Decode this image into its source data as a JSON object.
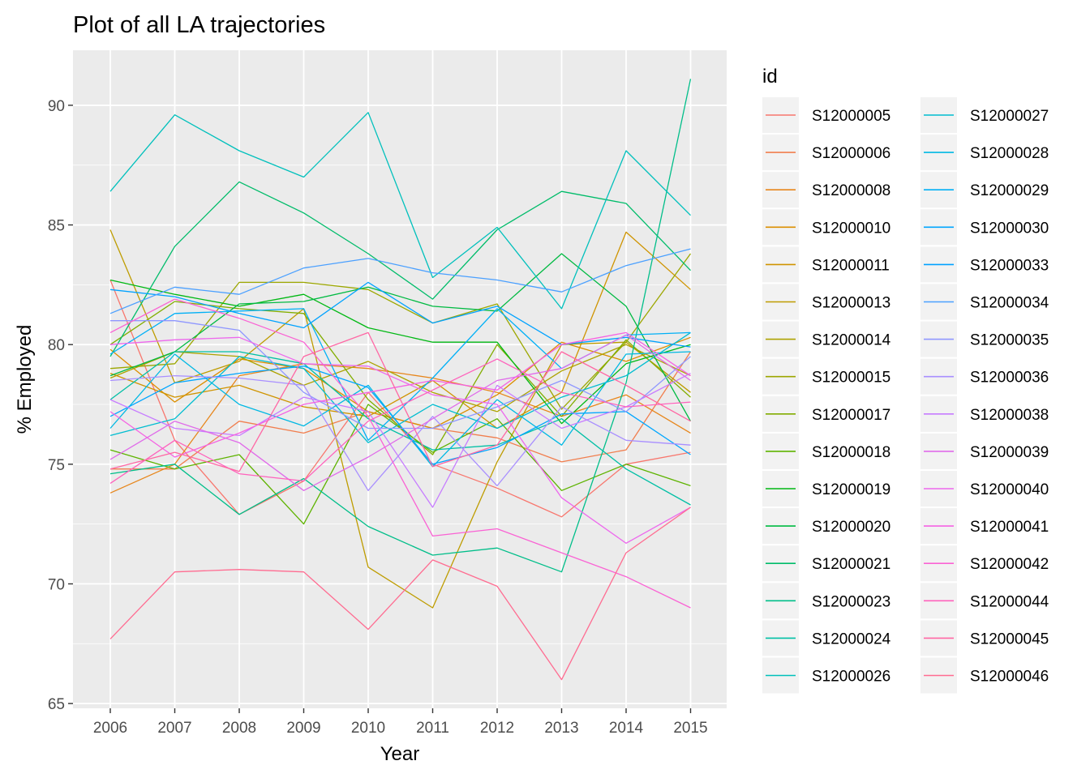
{
  "chart_data": {
    "type": "line",
    "title": "Plot of all LA trajectories",
    "xlabel": "Year",
    "ylabel": "% Employed",
    "x": [
      "2006",
      "2007",
      "2008",
      "2009",
      "2010",
      "2011",
      "2012",
      "2013",
      "2014",
      "2015"
    ],
    "ylim": [
      64.8,
      92.3
    ],
    "yticks": [
      65,
      70,
      75,
      80,
      85,
      90
    ],
    "grid": true,
    "legend_title": "id",
    "legend_position": "right",
    "series": [
      {
        "name": "S12000005",
        "color": "#F8766D",
        "values": [
          82.7,
          76.0,
          72.9,
          74.3,
          78.0,
          75.0,
          74.0,
          72.8,
          75.0,
          75.5
        ]
      },
      {
        "name": "S12000006",
        "color": "#F17E4E",
        "values": [
          74.8,
          74.8,
          76.8,
          76.3,
          77.2,
          76.5,
          76.1,
          75.1,
          75.6,
          79.7
        ]
      },
      {
        "name": "S12000008",
        "color": "#E7861B",
        "values": [
          73.8,
          75.0,
          78.7,
          79.2,
          79.0,
          78.6,
          78.0,
          77.0,
          77.9,
          76.3
        ]
      },
      {
        "name": "S12000010",
        "color": "#DB8E00",
        "values": [
          79.8,
          77.6,
          79.4,
          79.0,
          77.2,
          76.5,
          77.9,
          80.1,
          79.3,
          80.3
        ]
      },
      {
        "name": "S12000011",
        "color": "#CF9400",
        "values": [
          78.8,
          77.8,
          78.3,
          77.4,
          77.0,
          78.5,
          76.5,
          78.0,
          84.7,
          82.3
        ]
      },
      {
        "name": "S12000013",
        "color": "#BE9C00",
        "values": [
          84.8,
          78.4,
          79.3,
          81.5,
          70.7,
          69.0,
          75.1,
          80.0,
          80.1,
          78.0
        ]
      },
      {
        "name": "S12000014",
        "color": "#ADA200",
        "values": [
          78.6,
          79.7,
          79.5,
          78.3,
          79.3,
          78.0,
          77.2,
          78.9,
          80.0,
          78.7
        ]
      },
      {
        "name": "S12000015",
        "color": "#9CA700",
        "values": [
          79.0,
          79.2,
          82.6,
          82.6,
          82.3,
          80.9,
          81.7,
          77.3,
          80.1,
          83.8
        ]
      },
      {
        "name": "S12000017",
        "color": "#82AD00",
        "values": [
          80.0,
          81.8,
          81.5,
          81.3,
          77.7,
          75.4,
          80.0,
          77.0,
          80.2,
          77.8
        ]
      },
      {
        "name": "S12000018",
        "color": "#5EB300",
        "values": [
          75.6,
          74.8,
          75.4,
          72.5,
          77.5,
          75.5,
          76.9,
          73.9,
          75.0,
          74.1
        ]
      },
      {
        "name": "S12000019",
        "color": "#00B813",
        "values": [
          82.7,
          82.1,
          81.6,
          82.1,
          80.7,
          80.1,
          80.1,
          76.7,
          79.2,
          80.0
        ]
      },
      {
        "name": "S12000020",
        "color": "#00BA42",
        "values": [
          78.7,
          79.7,
          81.7,
          81.8,
          82.4,
          81.6,
          81.4,
          83.8,
          81.6,
          76.8
        ]
      },
      {
        "name": "S12000021",
        "color": "#00BC6A",
        "values": [
          79.5,
          84.1,
          86.8,
          85.5,
          83.8,
          81.9,
          84.8,
          86.4,
          85.9,
          83.1
        ]
      },
      {
        "name": "S12000023",
        "color": "#00BE89",
        "values": [
          74.6,
          75.0,
          72.9,
          74.4,
          72.4,
          71.2,
          71.5,
          70.5,
          78.4,
          91.1
        ]
      },
      {
        "name": "S12000024",
        "color": "#00BFA5",
        "values": [
          77.7,
          79.7,
          79.7,
          79.2,
          76.9,
          75.6,
          75.8,
          76.9,
          74.8,
          73.3
        ]
      },
      {
        "name": "S12000026",
        "color": "#00C0BC",
        "values": [
          86.4,
          89.6,
          88.1,
          87.0,
          89.7,
          82.8,
          84.9,
          81.5,
          88.1,
          85.4
        ]
      },
      {
        "name": "S12000027",
        "color": "#00BDD0",
        "values": [
          76.2,
          76.9,
          79.5,
          79.0,
          75.9,
          77.5,
          76.5,
          77.8,
          78.7,
          80.5
        ]
      },
      {
        "name": "S12000028",
        "color": "#00B8E3",
        "values": [
          76.5,
          79.6,
          77.5,
          76.6,
          78.3,
          74.9,
          77.7,
          75.8,
          79.6,
          79.7
        ]
      },
      {
        "name": "S12000029",
        "color": "#00B0F6",
        "values": [
          79.6,
          81.3,
          81.4,
          81.5,
          76.0,
          78.6,
          81.5,
          79.0,
          80.4,
          80.5
        ]
      },
      {
        "name": "S12000030",
        "color": "#00A6FF",
        "values": [
          77.0,
          78.4,
          78.8,
          79.1,
          78.2,
          75.0,
          75.7,
          77.1,
          77.2,
          75.4
        ]
      },
      {
        "name": "S12000033",
        "color": "#00A2FF",
        "values": [
          82.3,
          82.0,
          81.3,
          80.7,
          82.6,
          80.9,
          81.6,
          80.0,
          80.3,
          79.9
        ]
      },
      {
        "name": "S12000034",
        "color": "#4BA0FF",
        "values": [
          81.3,
          82.4,
          82.1,
          83.2,
          83.6,
          83.0,
          82.7,
          82.2,
          83.3,
          84.0
        ]
      },
      {
        "name": "S12000035",
        "color": "#8F97FF",
        "values": [
          81.0,
          81.0,
          80.6,
          78.0,
          76.5,
          76.5,
          77.4,
          78.5,
          77.2,
          79.5
        ]
      },
      {
        "name": "S12000036",
        "color": "#A98FFF",
        "values": [
          78.5,
          78.7,
          78.6,
          78.3,
          73.9,
          77.0,
          74.1,
          77.4,
          76.0,
          75.8
        ]
      },
      {
        "name": "S12000038",
        "color": "#C77CFF",
        "values": [
          77.7,
          76.5,
          76.2,
          77.8,
          77.2,
          73.2,
          78.3,
          76.5,
          77.4,
          78.8
        ]
      },
      {
        "name": "S12000039",
        "color": "#E06BEA",
        "values": [
          75.2,
          76.8,
          75.9,
          73.9,
          75.3,
          76.9,
          78.5,
          79.0,
          80.4,
          78.5
        ]
      },
      {
        "name": "S12000040",
        "color": "#ED68ED",
        "values": [
          80.0,
          80.2,
          80.3,
          79.2,
          79.1,
          77.9,
          77.5,
          73.6,
          71.7,
          73.2
        ]
      },
      {
        "name": "S12000041",
        "color": "#F563E3",
        "values": [
          77.2,
          75.3,
          76.3,
          77.5,
          78.0,
          78.5,
          78.1,
          80.0,
          80.5,
          78.7
        ]
      },
      {
        "name": "S12000042",
        "color": "#FA62D4",
        "values": [
          80.5,
          81.9,
          81.1,
          80.1,
          77.0,
          72.0,
          72.3,
          71.3,
          70.3,
          69.0
        ]
      },
      {
        "name": "S12000044",
        "color": "#FF62BC",
        "values": [
          74.2,
          76.0,
          74.6,
          74.3,
          76.8,
          78.1,
          79.4,
          78.0,
          77.4,
          77.6
        ]
      },
      {
        "name": "S12000045",
        "color": "#FF67A4",
        "values": [
          74.8,
          75.5,
          74.7,
          79.5,
          80.5,
          74.9,
          75.8,
          79.7,
          78.3,
          76.8
        ]
      },
      {
        "name": "S12000046",
        "color": "#FF6C91",
        "values": [
          67.7,
          70.5,
          70.6,
          70.5,
          68.1,
          71.0,
          69.9,
          66.0,
          71.3,
          73.2
        ]
      }
    ]
  }
}
